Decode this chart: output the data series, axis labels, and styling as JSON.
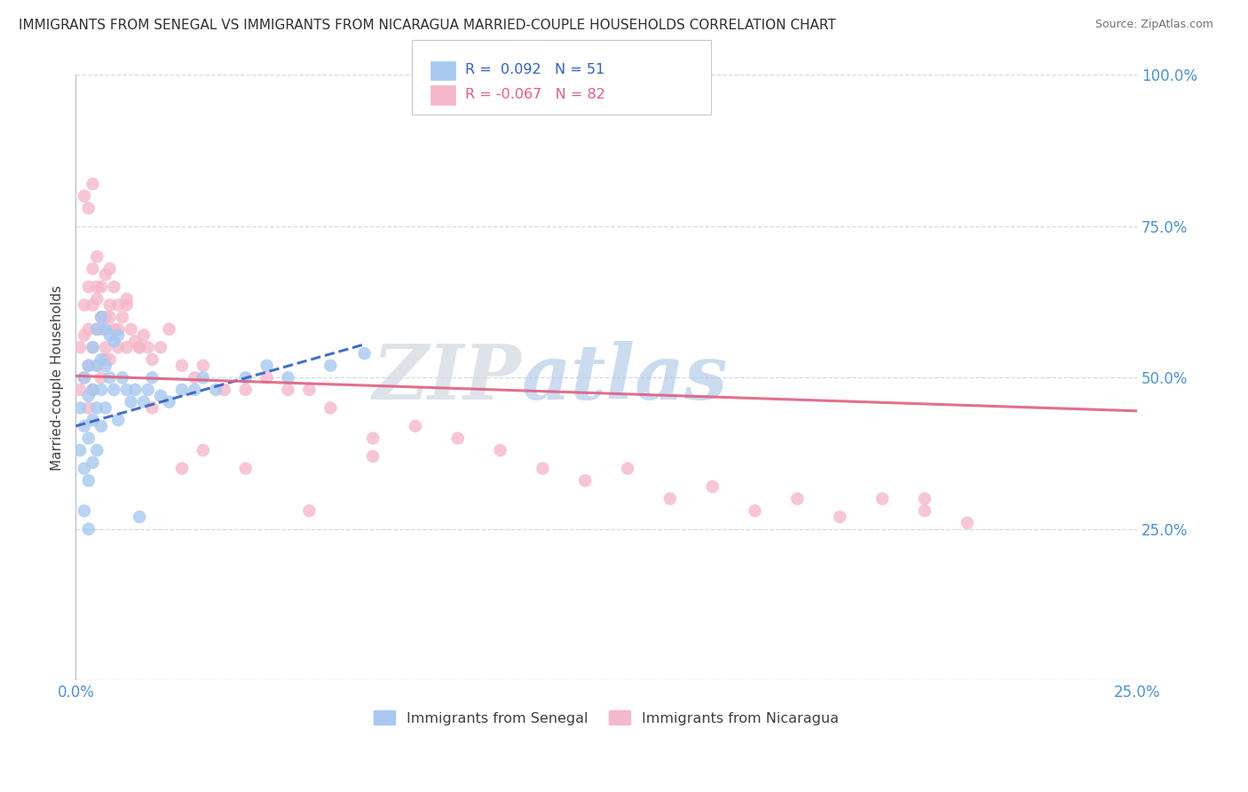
{
  "title": "IMMIGRANTS FROM SENEGAL VS IMMIGRANTS FROM NICARAGUA MARRIED-COUPLE HOUSEHOLDS CORRELATION CHART",
  "source": "Source: ZipAtlas.com",
  "ylabel": "Married-couple Households",
  "legend_r_senegal": "R =  0.092",
  "legend_n_senegal": "N = 51",
  "legend_r_nicaragua": "R = -0.067",
  "legend_n_nicaragua": "N = 82",
  "legend_label_senegal": "Immigrants from Senegal",
  "legend_label_nicaragua": "Immigrants from Nicaragua",
  "color_senegal": "#a8c8f0",
  "color_nicaragua": "#f5b8cb",
  "line_color_senegal": "#3060c0",
  "line_color_nicaragua": "#e06080",
  "watermark_zip": "ZIP",
  "watermark_atlas": "atlas",
  "xlim": [
    0.0,
    0.25
  ],
  "ylim": [
    0.0,
    1.0
  ],
  "yticks": [
    0.0,
    0.25,
    0.5,
    0.75,
    1.0
  ],
  "ytick_labels_right": [
    "",
    "25.0%",
    "50.0%",
    "75.0%",
    "100.0%"
  ],
  "background_color": "#ffffff",
  "senegal_x": [
    0.001,
    0.001,
    0.002,
    0.002,
    0.002,
    0.002,
    0.003,
    0.003,
    0.003,
    0.003,
    0.003,
    0.004,
    0.004,
    0.004,
    0.004,
    0.005,
    0.005,
    0.005,
    0.005,
    0.006,
    0.006,
    0.006,
    0.006,
    0.007,
    0.007,
    0.007,
    0.008,
    0.008,
    0.009,
    0.009,
    0.01,
    0.01,
    0.011,
    0.012,
    0.013,
    0.014,
    0.015,
    0.016,
    0.017,
    0.018,
    0.02,
    0.022,
    0.025,
    0.028,
    0.03,
    0.033,
    0.04,
    0.045,
    0.05,
    0.06,
    0.068
  ],
  "senegal_y": [
    0.45,
    0.38,
    0.5,
    0.42,
    0.35,
    0.28,
    0.52,
    0.47,
    0.4,
    0.33,
    0.25,
    0.55,
    0.48,
    0.43,
    0.36,
    0.58,
    0.52,
    0.45,
    0.38,
    0.6,
    0.53,
    0.48,
    0.42,
    0.58,
    0.52,
    0.45,
    0.57,
    0.5,
    0.56,
    0.48,
    0.57,
    0.43,
    0.5,
    0.48,
    0.46,
    0.48,
    0.27,
    0.46,
    0.48,
    0.5,
    0.47,
    0.46,
    0.48,
    0.48,
    0.5,
    0.48,
    0.5,
    0.52,
    0.5,
    0.52,
    0.54
  ],
  "nicaragua_x": [
    0.001,
    0.001,
    0.002,
    0.002,
    0.002,
    0.003,
    0.003,
    0.003,
    0.003,
    0.004,
    0.004,
    0.004,
    0.004,
    0.005,
    0.005,
    0.005,
    0.005,
    0.006,
    0.006,
    0.006,
    0.007,
    0.007,
    0.007,
    0.008,
    0.008,
    0.008,
    0.009,
    0.009,
    0.01,
    0.01,
    0.011,
    0.012,
    0.012,
    0.013,
    0.014,
    0.015,
    0.016,
    0.017,
    0.018,
    0.02,
    0.022,
    0.025,
    0.028,
    0.03,
    0.035,
    0.04,
    0.045,
    0.05,
    0.055,
    0.06,
    0.07,
    0.08,
    0.09,
    0.1,
    0.11,
    0.12,
    0.13,
    0.14,
    0.15,
    0.16,
    0.17,
    0.18,
    0.19,
    0.2,
    0.21,
    0.002,
    0.003,
    0.004,
    0.005,
    0.006,
    0.007,
    0.008,
    0.01,
    0.012,
    0.015,
    0.018,
    0.025,
    0.03,
    0.04,
    0.055,
    0.07,
    0.2
  ],
  "nicaragua_y": [
    0.55,
    0.48,
    0.62,
    0.57,
    0.5,
    0.65,
    0.58,
    0.52,
    0.45,
    0.68,
    0.62,
    0.55,
    0.48,
    0.7,
    0.63,
    0.58,
    0.52,
    0.65,
    0.58,
    0.5,
    0.67,
    0.6,
    0.53,
    0.68,
    0.6,
    0.53,
    0.65,
    0.58,
    0.62,
    0.55,
    0.6,
    0.62,
    0.55,
    0.58,
    0.56,
    0.55,
    0.57,
    0.55,
    0.53,
    0.55,
    0.58,
    0.52,
    0.5,
    0.52,
    0.48,
    0.48,
    0.5,
    0.48,
    0.48,
    0.45,
    0.4,
    0.42,
    0.4,
    0.38,
    0.35,
    0.33,
    0.35,
    0.3,
    0.32,
    0.28,
    0.3,
    0.27,
    0.3,
    0.28,
    0.26,
    0.8,
    0.78,
    0.82,
    0.65,
    0.6,
    0.55,
    0.62,
    0.58,
    0.63,
    0.55,
    0.45,
    0.35,
    0.38,
    0.35,
    0.28,
    0.37,
    0.3
  ]
}
